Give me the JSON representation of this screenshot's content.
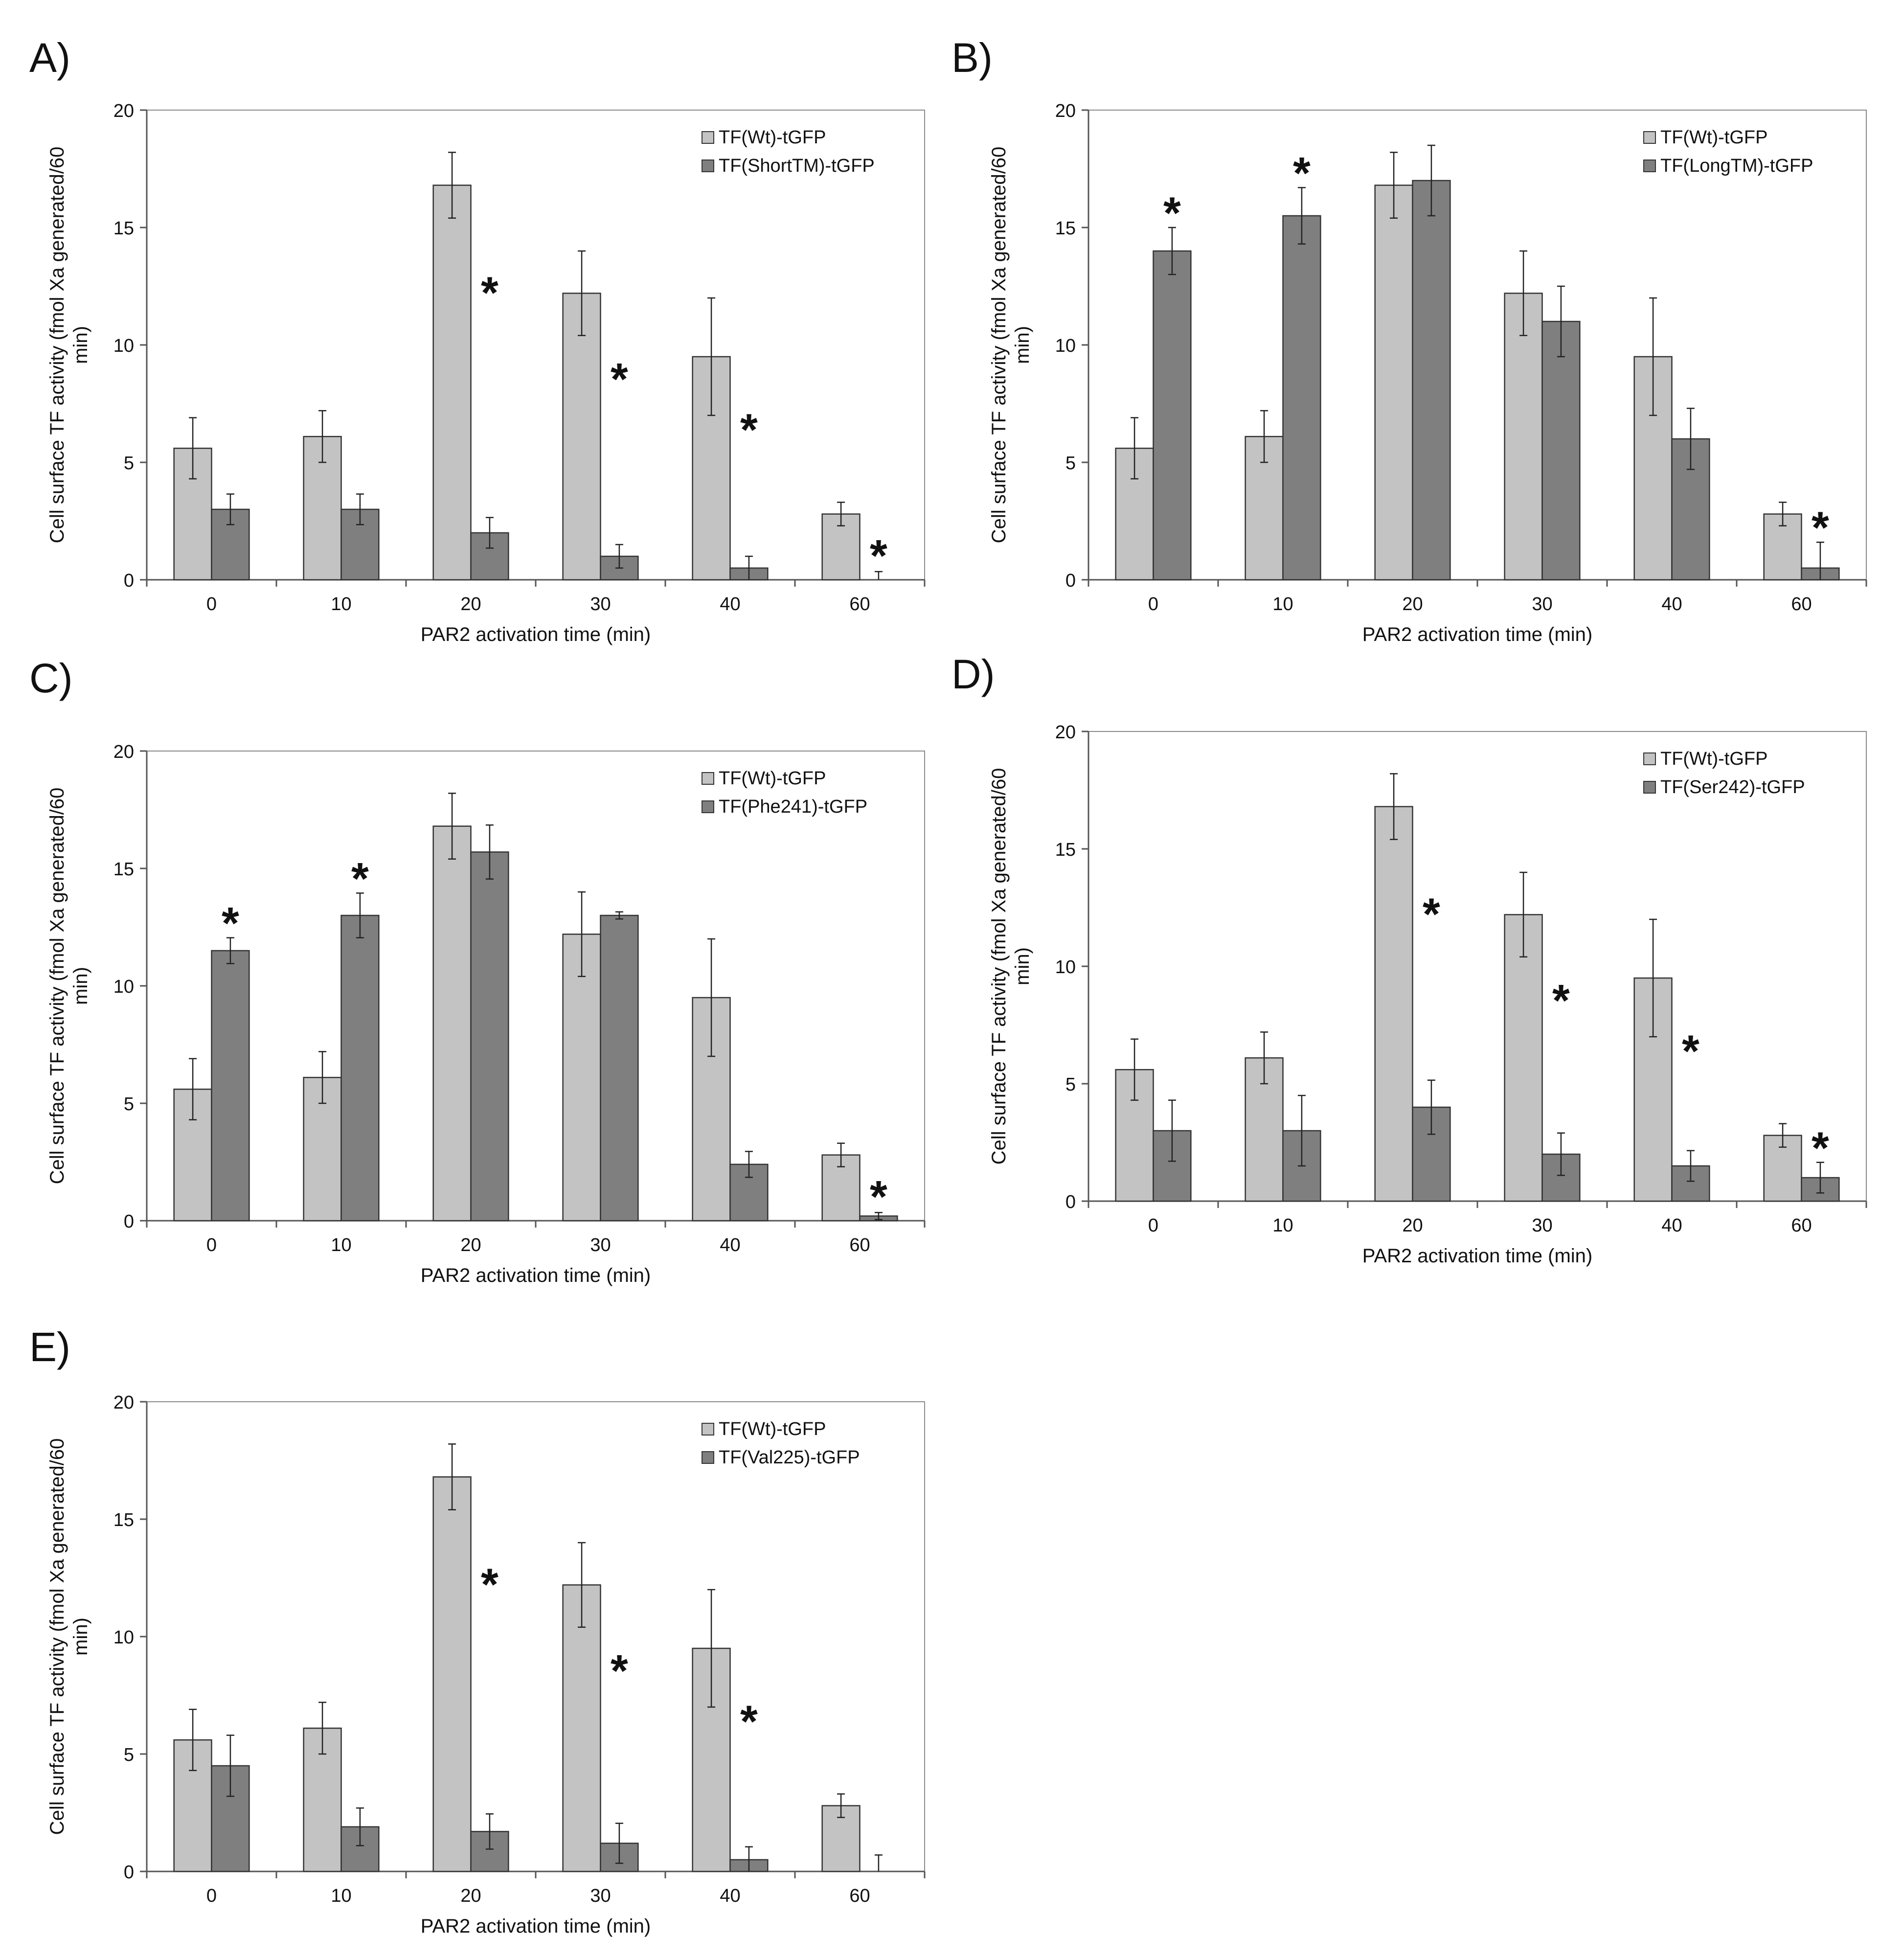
{
  "colors": {
    "wt_fill": "#c3c3c3",
    "mut_fill": "#7f7f7f",
    "bar_stroke": "#333333",
    "axis": "#555555",
    "plot_border": "#8a8a8a"
  },
  "chart_data": [
    {
      "type": "bar",
      "panel": "A)",
      "categories": [
        "0",
        "10",
        "20",
        "30",
        "40",
        "60"
      ],
      "xlabel": "PAR2 activation time (min)",
      "ylabel_line1": "Cell surface TF activity (fmol Xa generated/60",
      "ylabel_line2": "min)",
      "ylim": [
        0,
        20
      ],
      "yticks": [
        "0",
        "5",
        "10",
        "15",
        "20"
      ],
      "legend_position": "top-right",
      "series": [
        {
          "name": "TF(Wt)-tGFP",
          "values": [
            5.6,
            6.1,
            16.8,
            12.2,
            9.5,
            2.8
          ],
          "errors": [
            1.3,
            1.1,
            1.4,
            1.8,
            2.5,
            0.5
          ]
        },
        {
          "name": "TF(ShortTM)-tGFP",
          "values": [
            3.0,
            3.0,
            2.0,
            1.0,
            0.5,
            0.0
          ],
          "errors": [
            0.65,
            0.65,
            0.65,
            0.5,
            0.5,
            0.35
          ]
        }
      ],
      "significance": [
        false,
        false,
        true,
        true,
        true,
        true
      ]
    },
    {
      "type": "bar",
      "panel": "B)",
      "categories": [
        "0",
        "10",
        "20",
        "30",
        "40",
        "60"
      ],
      "xlabel": "PAR2 activation time (min)",
      "ylabel_line1": "Cell surface TF activity (fmol Xa generated/60",
      "ylabel_line2": "min)",
      "ylim": [
        0,
        20
      ],
      "yticks": [
        "0",
        "5",
        "10",
        "15",
        "20"
      ],
      "legend_position": "top-right",
      "series": [
        {
          "name": "TF(Wt)-tGFP",
          "values": [
            5.6,
            6.1,
            16.8,
            12.2,
            9.5,
            2.8
          ],
          "errors": [
            1.3,
            1.1,
            1.4,
            1.8,
            2.5,
            0.5
          ]
        },
        {
          "name": "TF(LongTM)-tGFP",
          "values": [
            14.0,
            15.5,
            17.0,
            11.0,
            6.0,
            0.5
          ],
          "errors": [
            1.0,
            1.2,
            1.5,
            1.5,
            1.3,
            1.1
          ]
        }
      ],
      "significance": [
        true,
        true,
        false,
        false,
        false,
        true
      ]
    },
    {
      "type": "bar",
      "panel": "C)",
      "categories": [
        "0",
        "10",
        "20",
        "30",
        "40",
        "60"
      ],
      "xlabel": "PAR2 activation time (min)",
      "ylabel_line1": "Cell surface TF activity (fmol Xa generated/60",
      "ylabel_line2": "min)",
      "ylim": [
        0,
        20
      ],
      "yticks": [
        "0",
        "5",
        "10",
        "15",
        "20"
      ],
      "legend_position": "top-right",
      "series": [
        {
          "name": "TF(Wt)-tGFP",
          "values": [
            5.6,
            6.1,
            16.8,
            12.2,
            9.5,
            2.8
          ],
          "errors": [
            1.3,
            1.1,
            1.4,
            1.8,
            2.5,
            0.5
          ]
        },
        {
          "name": "TF(Phe241)-tGFP",
          "values": [
            11.5,
            13.0,
            15.7,
            13.0,
            2.4,
            0.2
          ],
          "errors": [
            0.55,
            0.95,
            1.15,
            0.15,
            0.55,
            0.15
          ]
        }
      ],
      "significance": [
        true,
        true,
        false,
        false,
        false,
        true
      ]
    },
    {
      "type": "bar",
      "panel": "D)",
      "categories": [
        "0",
        "10",
        "20",
        "30",
        "40",
        "60"
      ],
      "xlabel": "PAR2 activation time (min)",
      "ylabel_line1": "Cell surface TF activity (fmol Xa generated/60",
      "ylabel_line2": "min)",
      "ylim": [
        0,
        20
      ],
      "yticks": [
        "0",
        "5",
        "10",
        "15",
        "20"
      ],
      "legend_position": "top-right",
      "series": [
        {
          "name": "TF(Wt)-tGFP",
          "values": [
            5.6,
            6.1,
            16.8,
            12.2,
            9.5,
            2.8
          ],
          "errors": [
            1.3,
            1.1,
            1.4,
            1.8,
            2.5,
            0.5
          ]
        },
        {
          "name": "TF(Ser242)-tGFP",
          "values": [
            3.0,
            3.0,
            4.0,
            2.0,
            1.5,
            1.0
          ],
          "errors": [
            1.3,
            1.5,
            1.15,
            0.9,
            0.65,
            0.65
          ]
        }
      ],
      "significance": [
        false,
        false,
        true,
        true,
        true,
        true
      ]
    },
    {
      "type": "bar",
      "panel": "E)",
      "categories": [
        "0",
        "10",
        "20",
        "30",
        "40",
        "60"
      ],
      "xlabel": "PAR2 activation time (min)",
      "ylabel_line1": "Cell surface TF activity (fmol Xa generated/60",
      "ylabel_line2": "min)",
      "ylim": [
        0,
        20
      ],
      "yticks": [
        "0",
        "5",
        "10",
        "15",
        "20"
      ],
      "legend_position": "top-right",
      "series": [
        {
          "name": "TF(Wt)-tGFP",
          "values": [
            5.6,
            6.1,
            16.8,
            12.2,
            9.5,
            2.8
          ],
          "errors": [
            1.3,
            1.1,
            1.4,
            1.8,
            2.5,
            0.5
          ]
        },
        {
          "name": "TF(Val225)-tGFP",
          "values": [
            4.5,
            1.9,
            1.7,
            1.2,
            0.5,
            0.0
          ],
          "errors": [
            1.3,
            0.8,
            0.75,
            0.85,
            0.55,
            0.7
          ]
        }
      ],
      "significance": [
        false,
        false,
        true,
        true,
        true,
        false
      ]
    }
  ]
}
